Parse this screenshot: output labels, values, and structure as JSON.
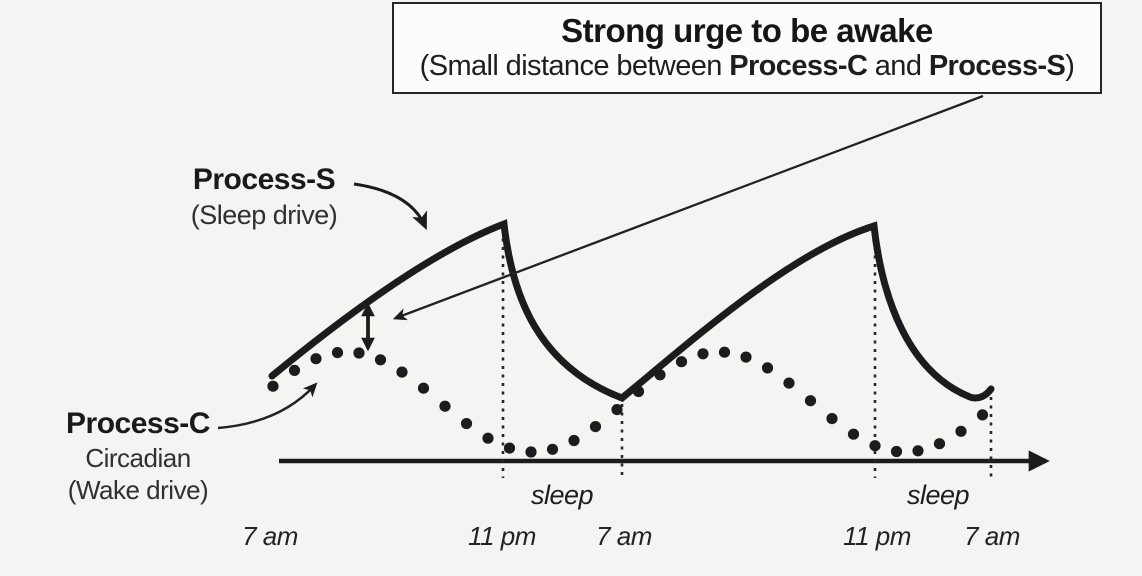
{
  "annotation_box": {
    "title": "Strong urge to be awake",
    "subtitle": {
      "prefix": "(Small distance between ",
      "bold_c": "Process-C",
      "mid": " and ",
      "bold_s": "Process-S",
      "suffix": ")"
    }
  },
  "labels": {
    "process_s": {
      "name": "Process-S",
      "desc": "(Sleep drive)"
    },
    "process_c": {
      "name": "Process-C",
      "desc1": "Circadian",
      "desc2": "(Wake drive)"
    }
  },
  "axis": {
    "ticks": [
      "7 am",
      "11 pm",
      "7 am",
      "11 pm",
      "7 am"
    ],
    "sleep_labels": [
      "sleep",
      "sleep"
    ]
  },
  "chart_data": {
    "type": "line",
    "x_ticks": [
      "7 am",
      "11 pm",
      "7 am",
      "11 pm",
      "7 am"
    ],
    "sleep_periods": [
      {
        "label": "sleep",
        "from": "11 pm",
        "to": "7 am"
      },
      {
        "label": "sleep",
        "from": "11 pm",
        "to": "7 am"
      }
    ],
    "series": [
      {
        "name": "Process-S",
        "label": "(Sleep drive)",
        "style": "solid-thick",
        "pattern": "rises from 7 am to peak at 11 pm, falls steeply during sleep to trough at 7 am; repeats for second day"
      },
      {
        "name": "Process-C",
        "label": "Circadian (Wake drive)",
        "style": "dotted",
        "pattern": "sinusoid peaking mid-morning each day and dipping to minimum during the sleep window"
      }
    ],
    "annotation": "Strong urge to be awake (Small distance between Process-C and Process-S)",
    "gap_marker": "double-headed vertical arrow between Process-S curve and Process-C peak"
  },
  "colors": {
    "ink": "#1c1c1c",
    "background": "#f4f4f2",
    "box_background": "#fcfcfb"
  }
}
